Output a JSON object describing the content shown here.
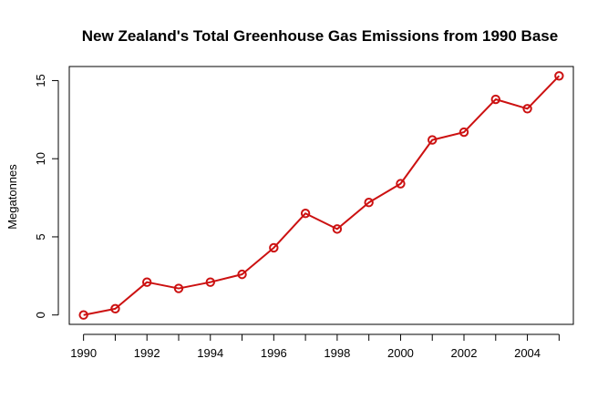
{
  "chart_data": {
    "type": "line",
    "title": "New Zealand's Total Greenhouse Gas Emissions from 1990 Base",
    "xlabel": "",
    "ylabel": "Megatonnes",
    "x": [
      1990,
      1991,
      1992,
      1993,
      1994,
      1995,
      1996,
      1997,
      1998,
      1999,
      2000,
      2001,
      2002,
      2003,
      2004,
      2005
    ],
    "series": [
      {
        "values": [
          0.0,
          0.4,
          2.1,
          1.7,
          2.1,
          2.6,
          4.3,
          6.5,
          5.5,
          7.2,
          8.4,
          11.2,
          11.7,
          13.8,
          13.2,
          15.3
        ],
        "color": "#cc1111"
      }
    ],
    "xlim": [
      1989.55,
      2005.45
    ],
    "ylim": [
      -0.6,
      15.9
    ],
    "x_ticks": [
      1990,
      1991,
      1992,
      1993,
      1994,
      1995,
      1996,
      1997,
      1998,
      1999,
      2000,
      2001,
      2002,
      2003,
      2004,
      2005
    ],
    "x_tick_labels": [
      "1990",
      "1992",
      "1994",
      "1996",
      "1998",
      "2000",
      "2002",
      "2004"
    ],
    "x_tick_label_values": [
      1990,
      1992,
      1994,
      1996,
      1998,
      2000,
      2002,
      2004
    ],
    "y_ticks": [
      0,
      5,
      10,
      15
    ],
    "y_tick_labels": [
      "0",
      "5",
      "10",
      "15"
    ],
    "grid": false,
    "legend": "none",
    "marker": "circle-open"
  }
}
